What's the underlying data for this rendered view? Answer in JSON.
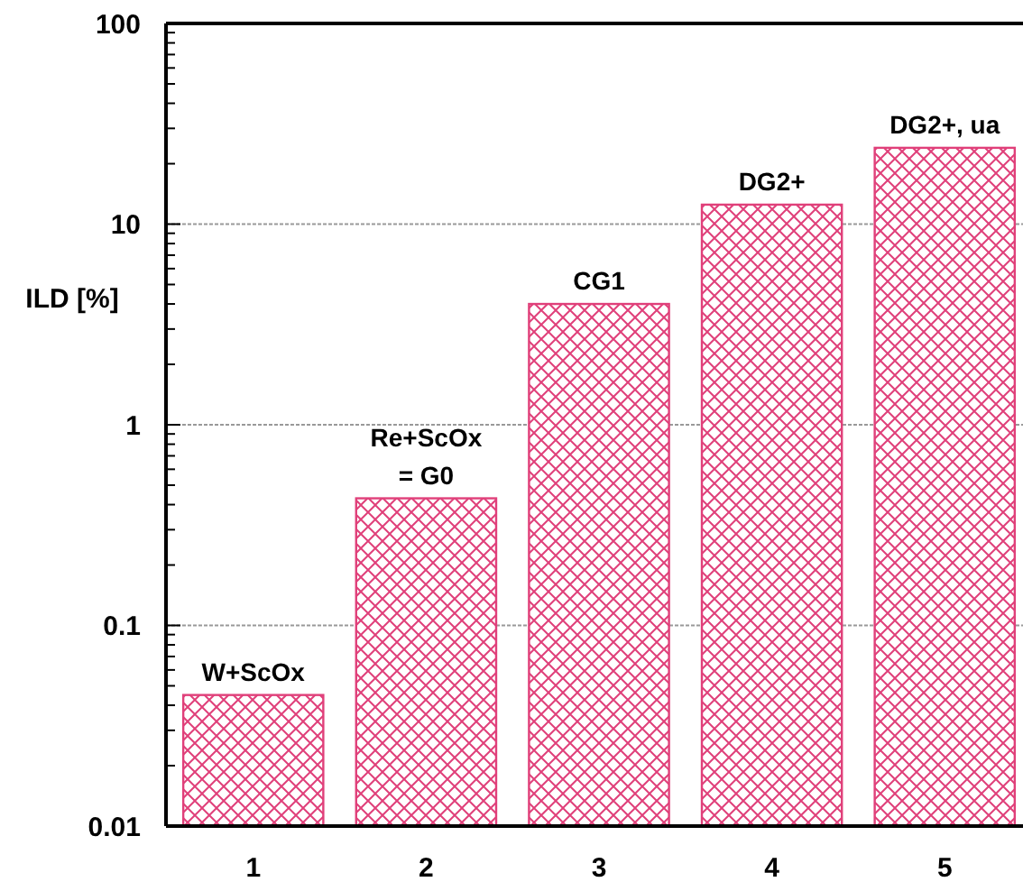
{
  "chart_data": {
    "type": "bar",
    "ylabel": "ILD [%]",
    "categories": [
      "1",
      "2",
      "3",
      "4",
      "5"
    ],
    "values": [
      0.045,
      0.43,
      4,
      12.5,
      24
    ],
    "color": "#e0407a",
    "log": true,
    "ylim": [
      0.01,
      100
    ],
    "yticks": [
      0.01,
      {
        "value": 0.02,
        "label": null
      },
      {
        "value": 0.03,
        "label": null
      },
      {
        "value": 0.04,
        "label": null
      },
      {
        "value": 0.05,
        "label": null
      },
      {
        "value": 0.06,
        "label": null
      },
      {
        "value": 0.07,
        "label": null
      },
      {
        "value": 0.08,
        "label": null
      },
      {
        "value": 0.09,
        "label": null
      },
      0.1,
      {
        "value": 0.2,
        "label": null
      },
      {
        "value": 0.3,
        "label": null
      },
      {
        "value": 0.4,
        "label": null
      },
      {
        "value": 0.5,
        "label": null
      },
      {
        "value": 0.6,
        "label": null
      },
      {
        "value": 0.7,
        "label": null
      },
      {
        "value": 0.8,
        "label": null
      },
      {
        "value": 0.9,
        "label": null
      },
      1,
      {
        "value": 2,
        "label": null
      },
      {
        "value": 3,
        "label": null
      },
      {
        "value": 4,
        "label": null
      },
      {
        "value": 5,
        "label": null
      },
      {
        "value": 6,
        "label": null
      },
      {
        "value": 7,
        "label": null
      },
      {
        "value": 8,
        "label": null
      },
      {
        "value": 9,
        "label": null
      },
      10,
      {
        "value": 20,
        "label": null
      },
      {
        "value": 30,
        "label": null
      },
      {
        "value": 40,
        "label": null
      },
      {
        "value": 50,
        "label": null
      },
      {
        "value": 60,
        "label": null
      },
      {
        "value": 70,
        "label": null
      },
      {
        "value": 80,
        "label": null
      },
      {
        "value": 90,
        "label": null
      },
      100
    ],
    "grid": "y",
    "annotations": [
      {
        "text": "W+ScOx",
        "x": "1",
        "y": 0.045
      },
      {
        "text": "Re+ScOx\n= G0",
        "x": "2",
        "y": 0.43
      },
      {
        "text": "CG1",
        "x": "3",
        "y": 4
      },
      {
        "text": "DG2+",
        "x": "4",
        "y": 12.5
      },
      {
        "text": "DG2+, ua",
        "x": "5",
        "y": 24
      }
    ]
  }
}
